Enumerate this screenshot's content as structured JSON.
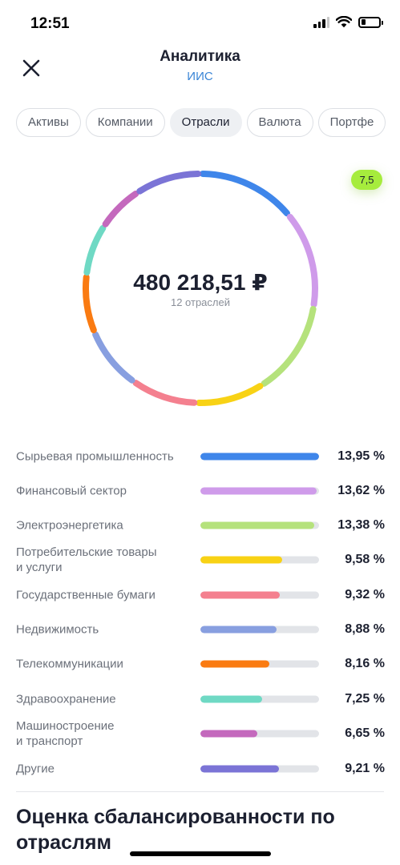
{
  "status_bar": {
    "time": "12:51"
  },
  "header": {
    "title": "Аналитика",
    "subtitle": "ИИС"
  },
  "tabs": [
    {
      "label": "Активы",
      "active": false
    },
    {
      "label": "Компании",
      "active": false
    },
    {
      "label": "Отрасли",
      "active": true
    },
    {
      "label": "Валюта",
      "active": false
    },
    {
      "label": "Портфе",
      "active": false
    }
  ],
  "summary": {
    "total": "480 218,51 ₽",
    "count_label": "12 отраслей",
    "score": "7,5"
  },
  "sectors": [
    {
      "name": "Сырьевая промышленность",
      "percent_label": "13,95 %",
      "percent": 13.95,
      "bar_fraction": 1.0,
      "color": "#3f86ea"
    },
    {
      "name": "Финансовый сектор",
      "percent_label": "13,62 %",
      "percent": 13.62,
      "bar_fraction": 0.98,
      "color": "#cf9bea"
    },
    {
      "name": "Электроэнергетика",
      "percent_label": "13,38 %",
      "percent": 13.38,
      "bar_fraction": 0.96,
      "color": "#b5e27c"
    },
    {
      "name": "Потребительские товары\nи услуги",
      "percent_label": "9,58 %",
      "percent": 9.58,
      "bar_fraction": 0.69,
      "color": "#f8d215"
    },
    {
      "name": "Государственные бумаги",
      "percent_label": "9,32 %",
      "percent": 9.32,
      "bar_fraction": 0.67,
      "color": "#f4808f"
    },
    {
      "name": "Недвижимость",
      "percent_label": "8,88 %",
      "percent": 8.88,
      "bar_fraction": 0.64,
      "color": "#889fe0"
    },
    {
      "name": "Телекоммуникации",
      "percent_label": "8,16 %",
      "percent": 8.16,
      "bar_fraction": 0.58,
      "color": "#fa7b12"
    },
    {
      "name": "Здравоохранение",
      "percent_label": "7,25 %",
      "percent": 7.25,
      "bar_fraction": 0.52,
      "color": "#6fd9c4"
    },
    {
      "name": "Машиностроение\nи транспорт",
      "percent_label": "6,65 %",
      "percent": 6.65,
      "bar_fraction": 0.48,
      "color": "#c469bd"
    },
    {
      "name": "Другие",
      "percent_label": "9,21 %",
      "percent": 9.21,
      "bar_fraction": 0.66,
      "color": "#7b74d6"
    }
  ],
  "section": {
    "title": "Оценка сбалансированности по отраслям"
  },
  "icons": {
    "close": "close-icon",
    "signal": "cellular-signal-icon",
    "wifi": "wifi-icon",
    "battery": "battery-icon"
  }
}
